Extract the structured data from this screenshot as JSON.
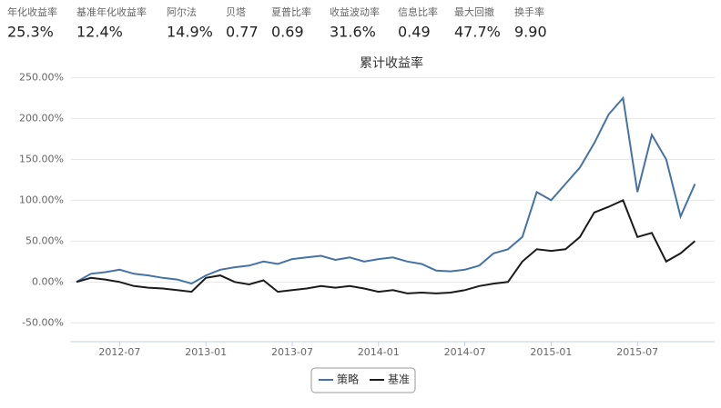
{
  "stats": [
    {
      "label": "年化收益率",
      "value": "25.3%"
    },
    {
      "label": "基准年化收益率",
      "value": "12.4%"
    },
    {
      "label": "阿尔法",
      "value": "14.9%"
    },
    {
      "label": "贝塔",
      "value": "0.77"
    },
    {
      "label": "夏普比率",
      "value": "0.69"
    },
    {
      "label": "收益波动率",
      "value": "31.6%"
    },
    {
      "label": "信息比率",
      "value": "0.49"
    },
    {
      "label": "最大回撤",
      "value": "47.7%"
    },
    {
      "label": "换手率",
      "value": "9.90"
    }
  ],
  "chart_data": {
    "type": "line",
    "title": "累计收益率",
    "x": [
      "2012-04",
      "2012-05",
      "2012-06",
      "2012-07",
      "2012-08",
      "2012-09",
      "2012-10",
      "2012-11",
      "2012-12",
      "2013-01",
      "2013-02",
      "2013-03",
      "2013-04",
      "2013-05",
      "2013-06",
      "2013-07",
      "2013-08",
      "2013-09",
      "2013-10",
      "2013-11",
      "2013-12",
      "2014-01",
      "2014-02",
      "2014-03",
      "2014-04",
      "2014-05",
      "2014-06",
      "2014-07",
      "2014-08",
      "2014-09",
      "2014-10",
      "2014-11",
      "2014-12",
      "2015-01",
      "2015-02",
      "2015-03",
      "2015-04",
      "2015-05",
      "2015-06",
      "2015-07",
      "2015-08",
      "2015-09",
      "2015-10",
      "2015-11"
    ],
    "series": [
      {
        "name": "策略",
        "color": "#4572a7",
        "values": [
          0,
          10,
          12,
          15,
          10,
          8,
          5,
          3,
          -2,
          8,
          15,
          18,
          20,
          25,
          22,
          28,
          30,
          32,
          27,
          30,
          25,
          28,
          30,
          25,
          22,
          14,
          13,
          15,
          20,
          35,
          40,
          55,
          110,
          100,
          120,
          140,
          170,
          205,
          225,
          110,
          180,
          150,
          80,
          120
        ]
      },
      {
        "name": "基准",
        "color": "#1b1b1b",
        "values": [
          0,
          5,
          3,
          0,
          -5,
          -7,
          -8,
          -10,
          -12,
          5,
          8,
          0,
          -3,
          2,
          -12,
          -10,
          -8,
          -5,
          -7,
          -5,
          -8,
          -12,
          -10,
          -14,
          -13,
          -14,
          -13,
          -10,
          -5,
          -2,
          0,
          25,
          40,
          38,
          40,
          55,
          85,
          92,
          100,
          55,
          60,
          25,
          35,
          50
        ]
      }
    ],
    "xticks": [
      "2012-07",
      "2013-01",
      "2013-07",
      "2014-01",
      "2014-07",
      "2015-01",
      "2015-07"
    ],
    "ylim": [
      -73,
      256
    ],
    "yticks": [
      {
        "value": -50,
        "label": "-50.00%"
      },
      {
        "value": 0,
        "label": "0.00%"
      },
      {
        "value": 50,
        "label": "50.00%"
      },
      {
        "value": 100,
        "label": "100.00%"
      },
      {
        "value": 150,
        "label": "150.00%"
      },
      {
        "value": 200,
        "label": "200.00%"
      },
      {
        "value": 250,
        "label": "250.00%"
      }
    ],
    "grid": true,
    "legend": "bottom"
  }
}
